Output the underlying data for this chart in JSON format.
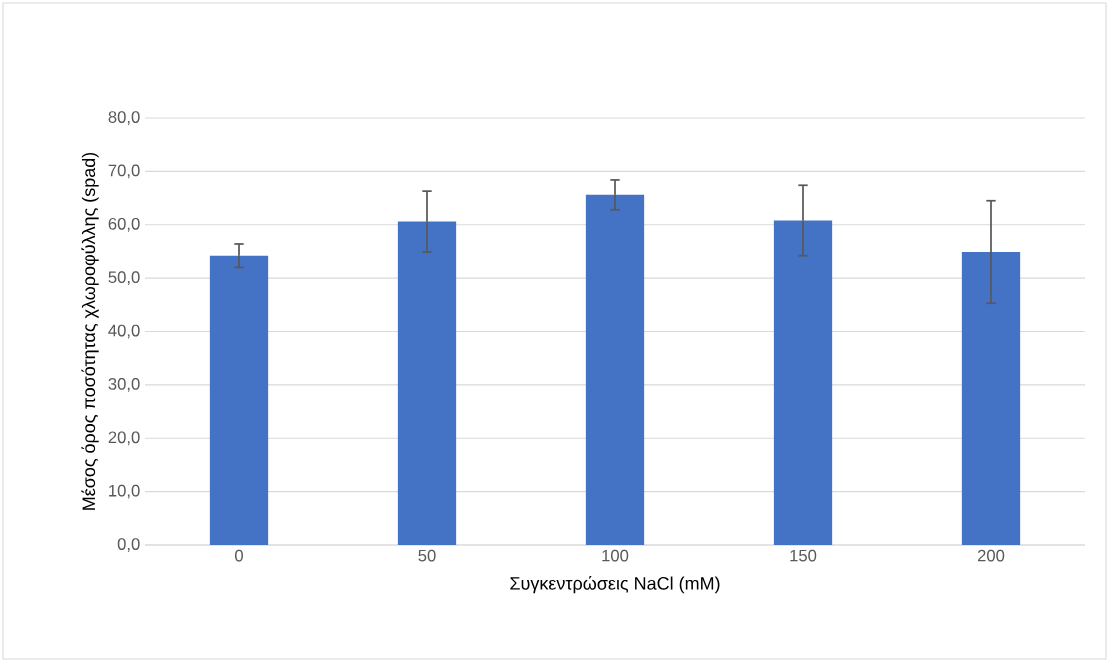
{
  "chart_data": {
    "type": "bar",
    "xlabel": "Συγκεντρώσεις NaCl (mM)",
    "ylabel": "Μέσος όρος ποσότητας χλωροφύλλης (spad)",
    "categories": [
      "0",
      "50",
      "100",
      "150",
      "200"
    ],
    "values": [
      54.2,
      60.6,
      65.6,
      60.8,
      54.9
    ],
    "errors": [
      2.2,
      5.7,
      2.8,
      6.6,
      9.6
    ],
    "color": "#4472c4",
    "ylim": [
      0,
      80
    ],
    "yticks": [
      {
        "value": 0,
        "label": "0,0"
      },
      {
        "value": 10,
        "label": "10,0"
      },
      {
        "value": 20,
        "label": "20,0"
      },
      {
        "value": 30,
        "label": "30,0"
      },
      {
        "value": 40,
        "label": "40,0"
      },
      {
        "value": 50,
        "label": "50,0"
      },
      {
        "value": 60,
        "label": "60,0"
      },
      {
        "value": 70,
        "label": "70,0"
      },
      {
        "value": 80,
        "label": "80,0"
      }
    ],
    "grid": "y"
  }
}
